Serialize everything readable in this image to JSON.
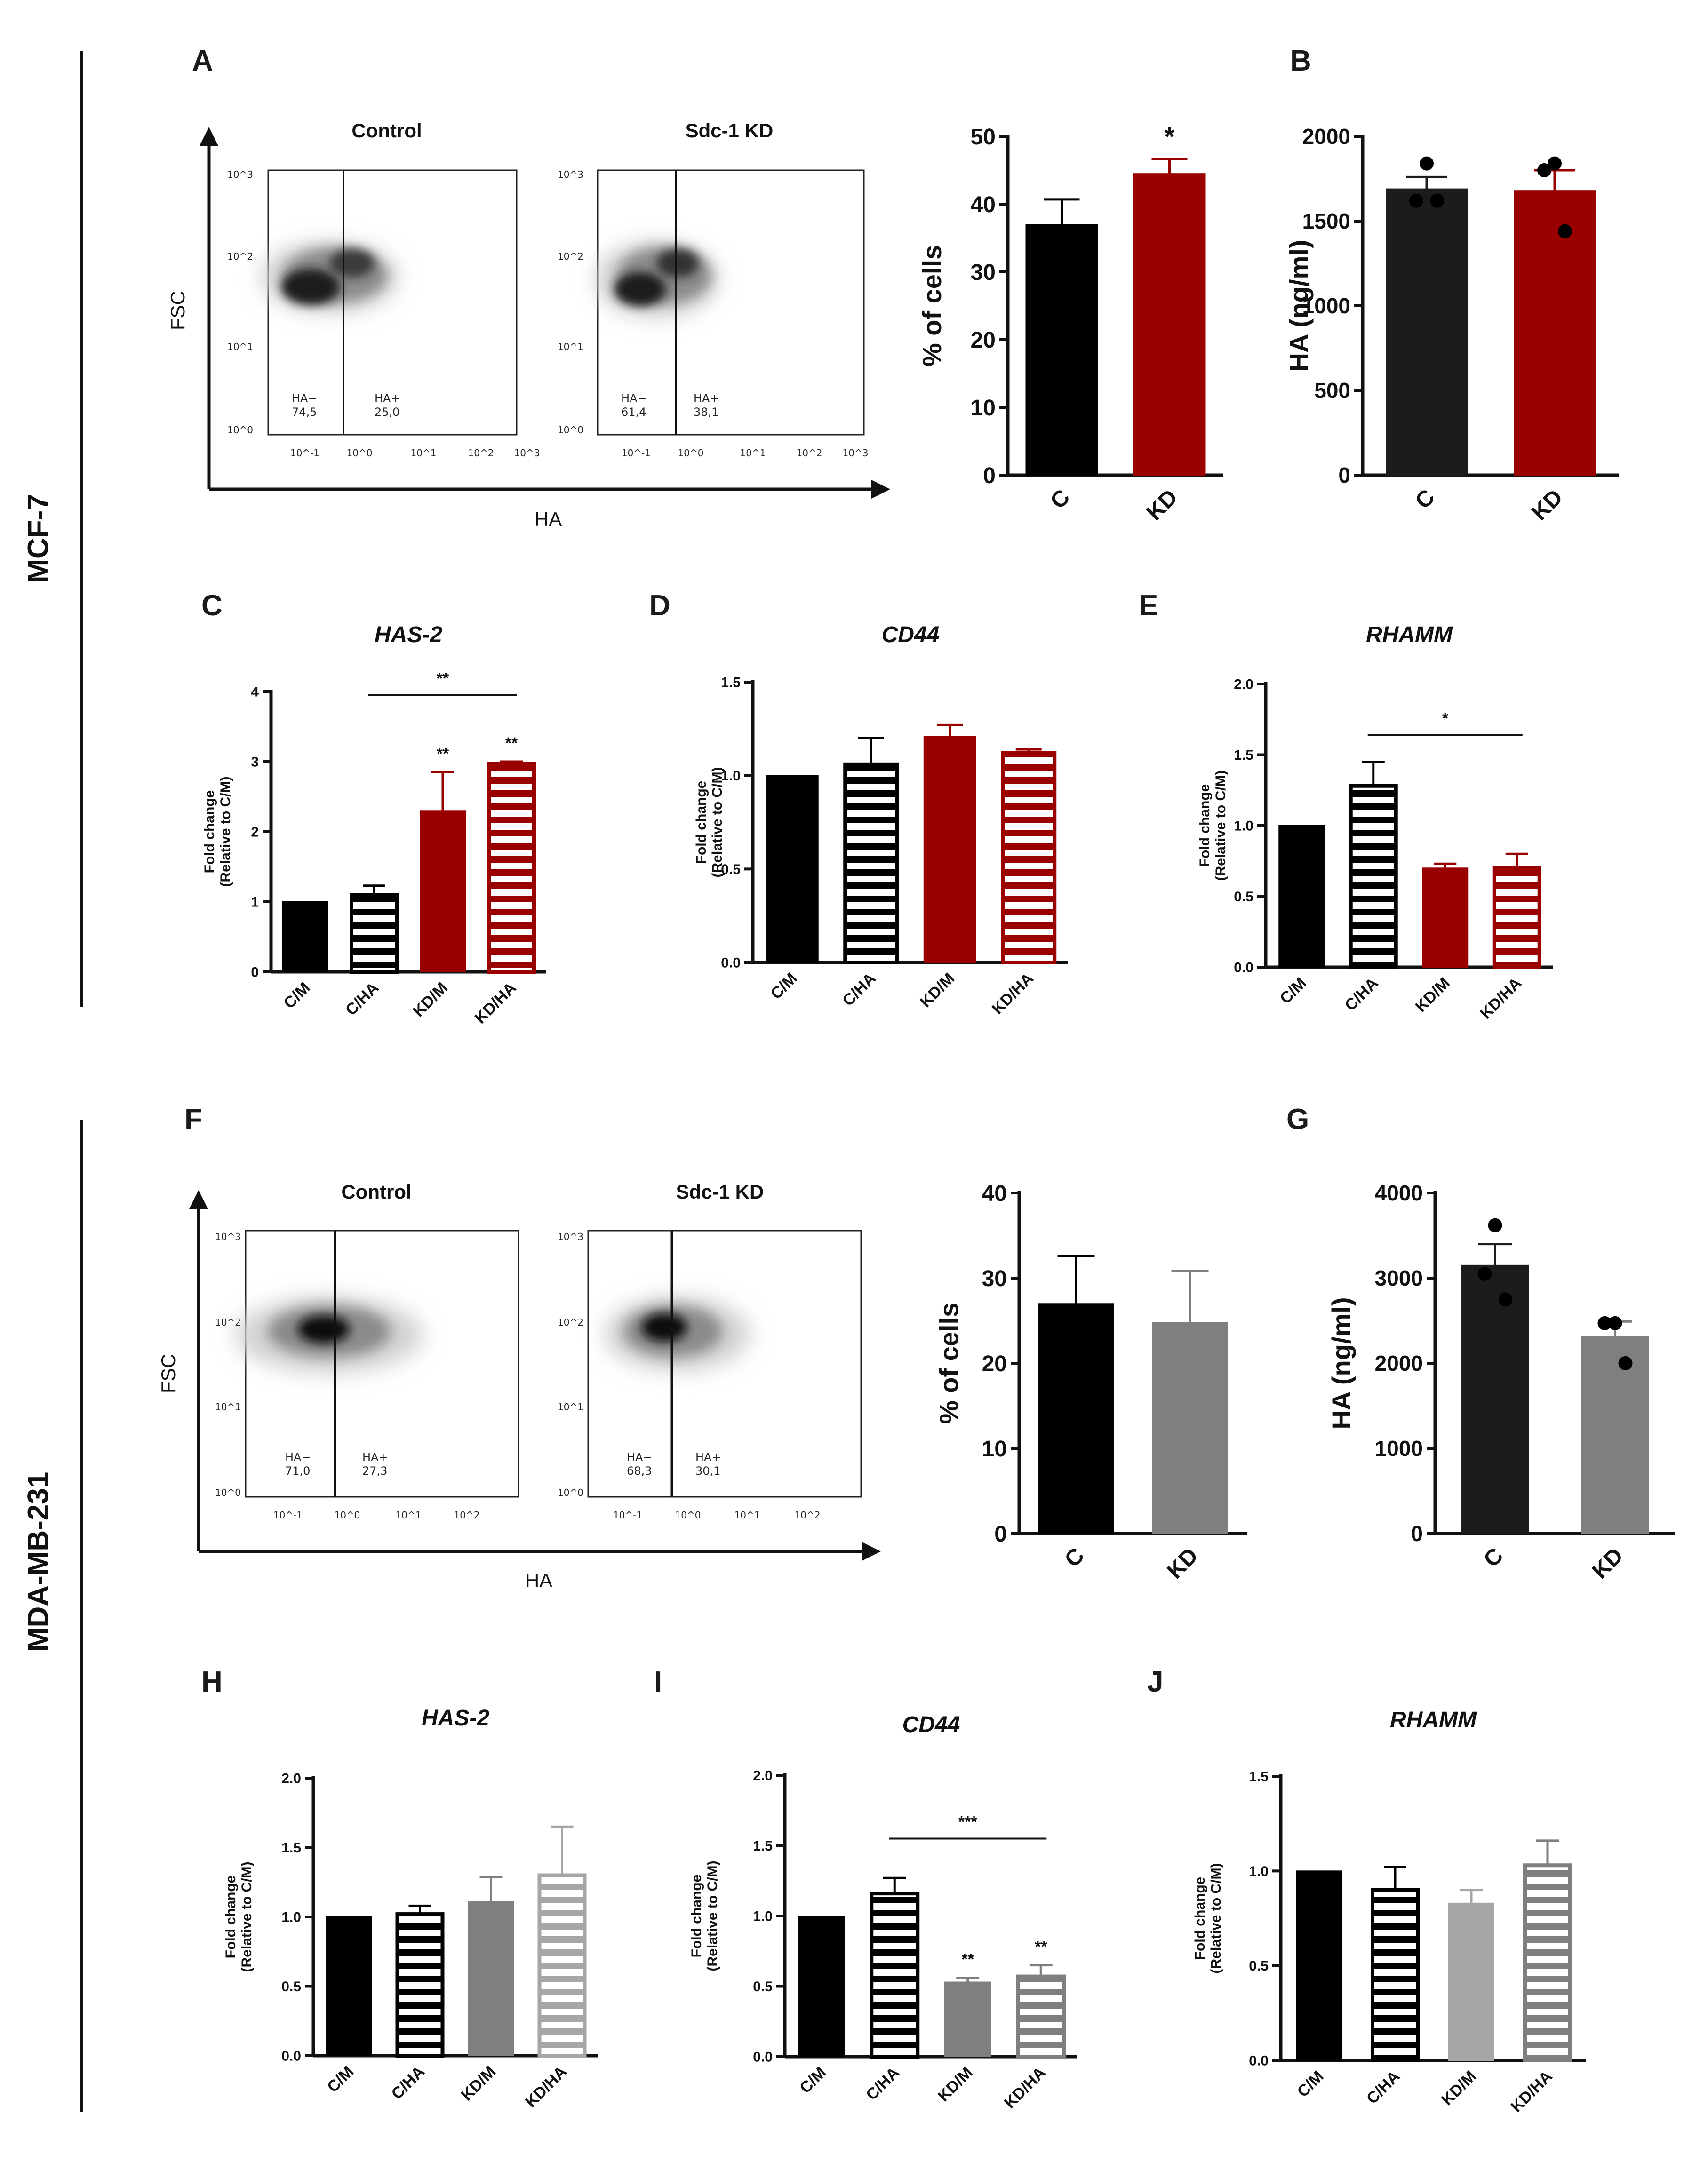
{
  "row_labels": {
    "top": "MCF-7",
    "bottom": "MDA-MB-231"
  },
  "colors": {
    "black": "#000000",
    "red": "#9b0000",
    "gray": "#7f7f7f",
    "lightgray": "#a6a6a6",
    "darkgray": "#1c1c1c"
  },
  "flow_panels": [
    {
      "panel": "A",
      "y_axis_label": "FSC",
      "x_axis_label": "HA",
      "y_ticks": [
        "10^0",
        "10^1",
        "10^2",
        "10^3"
      ],
      "x_ticks": [
        "10^-1",
        "10^0",
        "10^1",
        "10^2",
        "10^3"
      ],
      "plots": [
        {
          "title": "Control",
          "gate_left_label": "HA−",
          "gate_left_value": "74,5",
          "gate_right_label": "HA+",
          "gate_right_value": "25,0"
        },
        {
          "title": "Sdc-1 KD",
          "gate_left_label": "HA−",
          "gate_left_value": "61,4",
          "gate_right_label": "HA+",
          "gate_right_value": "38,1"
        }
      ]
    },
    {
      "panel": "F",
      "y_axis_label": "FSC",
      "x_axis_label": "HA",
      "y_ticks": [
        "10^0",
        "10^1",
        "10^2",
        "10^3"
      ],
      "x_ticks": [
        "10^-1",
        "10^0",
        "10^1",
        "10^2"
      ],
      "plots": [
        {
          "title": "Control",
          "gate_left_label": "HA−",
          "gate_left_value": "71,0",
          "gate_right_label": "HA+",
          "gate_right_value": "27,3"
        },
        {
          "title": "Sdc-1 KD",
          "gate_left_label": "HA−",
          "gate_left_value": "68,3",
          "gate_right_label": "HA+",
          "gate_right_value": "30,1"
        }
      ]
    }
  ],
  "chart_data": [
    {
      "id": "A-bar",
      "type": "bar",
      "title": "",
      "ylabel": "% of cells",
      "categories": [
        "C",
        "KD"
      ],
      "values": [
        37,
        44.5
      ],
      "errors": [
        3.7,
        2.2
      ],
      "ylim": [
        0,
        50
      ],
      "yticks": [
        0,
        10,
        20,
        30,
        40,
        50
      ],
      "colors": [
        "#000000",
        "#9b0000"
      ],
      "patterns": [
        "solid",
        "solid"
      ],
      "significance": [
        {
          "bar": 1,
          "label": "*"
        }
      ]
    },
    {
      "id": "B",
      "panel": "B",
      "type": "bar",
      "title": "",
      "ylabel": "HA (ng/ml)",
      "categories": [
        "C",
        "KD"
      ],
      "values": [
        1690,
        1680
      ],
      "errors": [
        70,
        120
      ],
      "ylim": [
        0,
        2000
      ],
      "yticks": [
        0,
        500,
        1000,
        1500,
        2000
      ],
      "colors": [
        "#1c1c1c",
        "#9b0000"
      ],
      "patterns": [
        "solid",
        "solid"
      ],
      "points": [
        [
          1840,
          1620,
          1620
        ],
        [
          1840,
          1800,
          1440
        ]
      ]
    },
    {
      "id": "C",
      "panel": "C",
      "type": "bar",
      "title": "HAS-2",
      "ylabel": [
        "Fold change",
        "(Relative to C/M)"
      ],
      "categories": [
        "C/M",
        "C/HA",
        "KD/M",
        "KD/HA"
      ],
      "values": [
        1,
        1.1,
        2.3,
        2.97
      ],
      "errors": [
        0,
        0.13,
        0.55,
        0.03
      ],
      "ylim": [
        0,
        4
      ],
      "yticks": [
        0,
        1,
        2,
        3,
        4
      ],
      "ytick_labels": [
        "0",
        "1",
        "2",
        "3",
        "4"
      ],
      "colors": [
        "#000000",
        "#000000",
        "#9b0000",
        "#9b0000"
      ],
      "patterns": [
        "solid",
        "stripe",
        "solid",
        "stripe"
      ],
      "significance": [
        {
          "bar": 2,
          "label": "**"
        },
        {
          "bar": 3,
          "label": "**"
        }
      ],
      "brackets": [
        {
          "from": 1,
          "to": 3,
          "y": 3.95,
          "label": "**"
        }
      ]
    },
    {
      "id": "D",
      "panel": "D",
      "type": "bar",
      "title": "CD44",
      "ylabel": [
        "Fold change",
        "(Relative to C/M)"
      ],
      "categories": [
        "C/M",
        "C/HA",
        "KD/M",
        "KD/HA"
      ],
      "values": [
        1,
        1.06,
        1.21,
        1.12
      ],
      "errors": [
        0,
        0.14,
        0.06,
        0.02
      ],
      "ylim": [
        0,
        1.5
      ],
      "yticks": [
        0,
        0.5,
        1,
        1.5
      ],
      "ytick_labels": [
        "0.0",
        "0.5",
        "1.0",
        "1.5"
      ],
      "colors": [
        "#000000",
        "#000000",
        "#9b0000",
        "#9b0000"
      ],
      "patterns": [
        "solid",
        "stripe",
        "solid",
        "stripe"
      ]
    },
    {
      "id": "E",
      "panel": "E",
      "type": "bar",
      "title": "RHAMM",
      "ylabel": [
        "Fold change",
        "(Relative to C/M)"
      ],
      "categories": [
        "C/M",
        "C/HA",
        "KD/M",
        "KD/HA"
      ],
      "values": [
        1,
        1.28,
        0.7,
        0.7
      ],
      "errors": [
        0,
        0.17,
        0.03,
        0.1
      ],
      "ylim": [
        0,
        2
      ],
      "yticks": [
        0,
        0.5,
        1,
        1.5,
        2
      ],
      "ytick_labels": [
        "0.0",
        "0.5",
        "1.0",
        "1.5",
        "2.0"
      ],
      "colors": [
        "#000000",
        "#000000",
        "#9b0000",
        "#9b0000"
      ],
      "patterns": [
        "solid",
        "stripe",
        "solid",
        "stripe"
      ],
      "brackets": [
        {
          "from": 1,
          "to": 3,
          "y": 1.64,
          "label": "*"
        }
      ]
    },
    {
      "id": "F-bar",
      "type": "bar",
      "title": "",
      "ylabel": "% of cells",
      "categories": [
        "C",
        "KD"
      ],
      "values": [
        27,
        24.8
      ],
      "errors": [
        5.6,
        6
      ],
      "ylim": [
        0,
        40
      ],
      "yticks": [
        0,
        10,
        20,
        30,
        40
      ],
      "colors": [
        "#000000",
        "#7f7f7f"
      ],
      "patterns": [
        "solid",
        "solid"
      ]
    },
    {
      "id": "G",
      "panel": "G",
      "type": "bar",
      "title": "",
      "ylabel": "HA (ng/ml)",
      "categories": [
        "C",
        "KD"
      ],
      "values": [
        3150,
        2310
      ],
      "errors": [
        250,
        180
      ],
      "ylim": [
        0,
        4000
      ],
      "yticks": [
        0,
        1000,
        2000,
        3000,
        4000
      ],
      "colors": [
        "#1c1c1c",
        "#7f7f7f"
      ],
      "patterns": [
        "solid",
        "solid"
      ],
      "points": [
        [
          3620,
          3050,
          2750
        ],
        [
          2470,
          2470,
          2000
        ]
      ]
    },
    {
      "id": "H",
      "panel": "H",
      "type": "bar",
      "title": "HAS-2",
      "ylabel": [
        "Fold change",
        "(Relative to C/M)"
      ],
      "categories": [
        "C/M",
        "C/HA",
        "KD/M",
        "KD/HA"
      ],
      "values": [
        1,
        1.02,
        1.11,
        1.3
      ],
      "errors": [
        0,
        0.06,
        0.18,
        0.35
      ],
      "ylim": [
        0,
        2
      ],
      "yticks": [
        0,
        0.5,
        1,
        1.5,
        2
      ],
      "ytick_labels": [
        "0.0",
        "0.5",
        "1.0",
        "1.5",
        "2.0"
      ],
      "colors": [
        "#000000",
        "#000000",
        "#7f7f7f",
        "#a6a6a6"
      ],
      "patterns": [
        "solid",
        "stripe",
        "solid",
        "stripe"
      ]
    },
    {
      "id": "I",
      "panel": "I",
      "type": "bar",
      "title": "CD44",
      "ylabel": [
        "Fold change",
        "(Relative to C/M)"
      ],
      "categories": [
        "C/M",
        "C/HA",
        "KD/M",
        "KD/HA"
      ],
      "values": [
        1,
        1.16,
        0.53,
        0.57
      ],
      "errors": [
        0,
        0.11,
        0.03,
        0.08
      ],
      "ylim": [
        0,
        2
      ],
      "yticks": [
        0,
        0.5,
        1,
        1.5,
        2
      ],
      "ytick_labels": [
        "0.0",
        "0.5",
        "1.0",
        "1.5",
        "2.0"
      ],
      "colors": [
        "#000000",
        "#000000",
        "#7f7f7f",
        "#7f7f7f"
      ],
      "patterns": [
        "solid",
        "stripe",
        "solid",
        "stripe"
      ],
      "significance": [
        {
          "bar": 2,
          "label": "**"
        },
        {
          "bar": 3,
          "label": "**"
        }
      ],
      "brackets": [
        {
          "from": 1,
          "to": 3,
          "y": 1.55,
          "label": "***"
        }
      ]
    },
    {
      "id": "J",
      "panel": "J",
      "type": "bar",
      "title": "RHAMM",
      "ylabel": [
        "Fold change",
        "(Relative to C/M)"
      ],
      "categories": [
        "C/M",
        "C/HA",
        "KD/M",
        "KD/HA"
      ],
      "values": [
        1,
        0.9,
        0.83,
        1.03
      ],
      "errors": [
        0,
        0.12,
        0.07,
        0.13
      ],
      "ylim": [
        0,
        1.5
      ],
      "yticks": [
        0,
        0.5,
        1,
        1.5
      ],
      "ytick_labels": [
        "0.0",
        "0.5",
        "1.0",
        "1.5"
      ],
      "colors": [
        "#000000",
        "#000000",
        "#a6a6a6",
        "#7f7f7f"
      ],
      "patterns": [
        "solid",
        "stripe",
        "solid",
        "stripe"
      ]
    }
  ]
}
